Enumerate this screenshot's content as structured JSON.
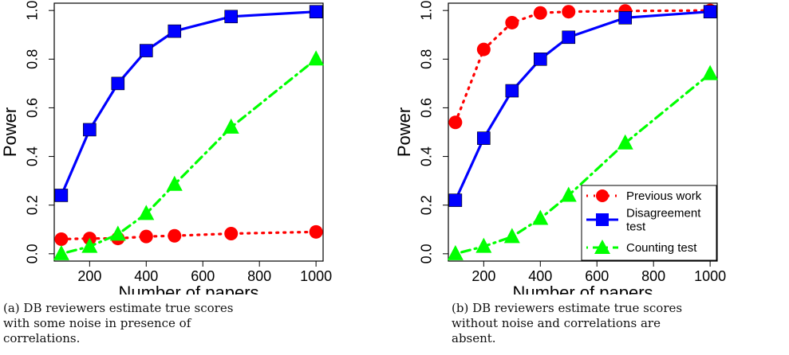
{
  "chart_data": [
    {
      "type": "line",
      "title": "",
      "xlabel": "Number of papers",
      "ylabel": "Power",
      "x": [
        100,
        200,
        300,
        400,
        500,
        700,
        1000
      ],
      "xticks": [
        "200",
        "400",
        "600",
        "800",
        "1000"
      ],
      "yticks": [
        "0.0",
        "0.2",
        "0.4",
        "0.6",
        "0.8",
        "1.0"
      ],
      "xlim": [
        75,
        1025
      ],
      "ylim": [
        -0.03,
        1.03
      ],
      "legend": "none",
      "caption": "(a)  DB reviewers estimate true scores with some noise in presence of correlations.",
      "series": [
        {
          "key": "previous",
          "values": [
            0.06,
            0.063,
            0.063,
            0.071,
            0.074,
            0.083,
            0.09
          ],
          "color": "#ff0000",
          "marker": "circle",
          "dash": "2,7"
        },
        {
          "key": "disagreement",
          "values": [
            0.24,
            0.51,
            0.7,
            0.835,
            0.915,
            0.975,
            0.995
          ],
          "color": "#0000ff",
          "marker": "square",
          "dash": ""
        },
        {
          "key": "counting",
          "values": [
            0.0,
            0.03,
            0.08,
            0.165,
            0.285,
            0.52,
            0.8
          ],
          "color": "#00ff00",
          "marker": "triangle",
          "dash": "2,6,11,6"
        }
      ]
    },
    {
      "type": "line",
      "title": "",
      "xlabel": "Number of papers",
      "ylabel": "Power",
      "x": [
        100,
        200,
        300,
        400,
        500,
        700,
        1000
      ],
      "xticks": [
        "200",
        "400",
        "600",
        "800",
        "1000"
      ],
      "yticks": [
        "0.0",
        "0.2",
        "0.4",
        "0.6",
        "0.8",
        "1.0"
      ],
      "xlim": [
        75,
        1025
      ],
      "ylim": [
        -0.03,
        1.03
      ],
      "legend": "bottom-right",
      "caption": "(b)  DB reviewers estimate true scores without noise and correlations are absent.",
      "series": [
        {
          "key": "previous",
          "name": "Previous work",
          "values": [
            0.54,
            0.84,
            0.95,
            0.99,
            0.995,
            0.998,
            1.0
          ],
          "color": "#ff0000",
          "marker": "circle",
          "dash": "2,7"
        },
        {
          "key": "disagreement",
          "name": "Disagreement test",
          "values": [
            0.22,
            0.475,
            0.67,
            0.8,
            0.89,
            0.97,
            0.995
          ],
          "color": "#0000ff",
          "marker": "square",
          "dash": ""
        },
        {
          "key": "counting",
          "name": "Counting test",
          "values": [
            0.0,
            0.03,
            0.07,
            0.145,
            0.24,
            0.455,
            0.74
          ],
          "color": "#00ff00",
          "marker": "triangle",
          "dash": "2,6,11,6"
        }
      ]
    }
  ]
}
